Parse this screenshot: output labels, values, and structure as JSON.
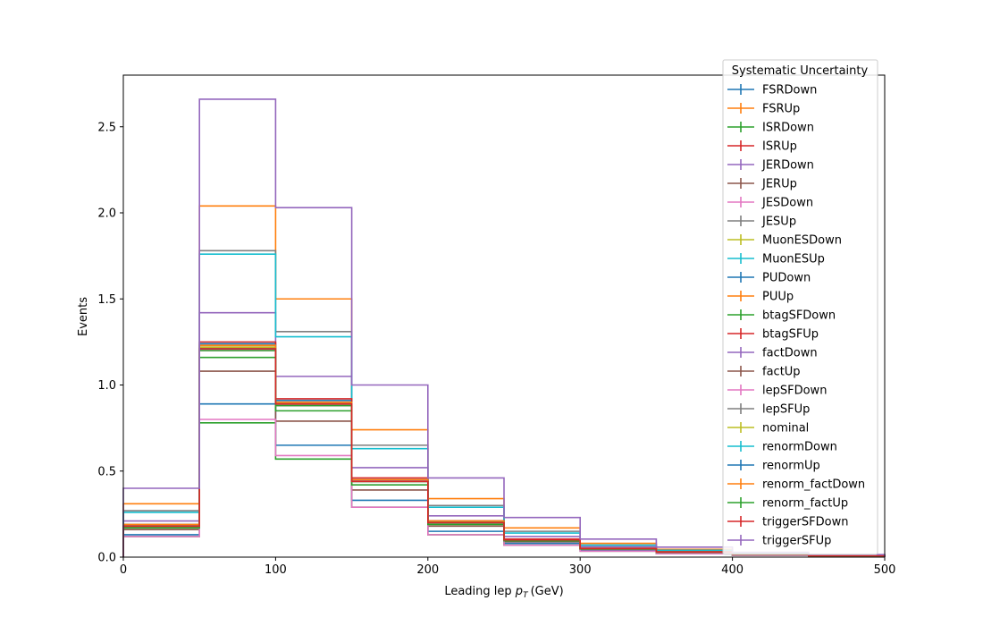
{
  "chart_data": {
    "type": "step",
    "xlabel": "Leading lep",
    "xlabel_sym": "p",
    "xlabel_sub": "T",
    "xlabel_unit": "(GeV)",
    "ylabel": "Events",
    "xlim": [
      0,
      500
    ],
    "ylim": [
      0,
      2.8
    ],
    "xticks": [
      0,
      100,
      200,
      300,
      400,
      500
    ],
    "yticks": [
      0.0,
      0.5,
      1.0,
      1.5,
      2.0,
      2.5
    ],
    "xtick_labels": [
      "0",
      "100",
      "200",
      "300",
      "400",
      "500"
    ],
    "ytick_labels": [
      "0.0",
      "0.5",
      "1.0",
      "1.5",
      "2.0",
      "2.5"
    ],
    "bin_edges": [
      0,
      50,
      100,
      150,
      200,
      250,
      300,
      350,
      400,
      450,
      500
    ],
    "legend_title": "Systematic Uncertainty",
    "legend_position": "upper-right",
    "series": [
      {
        "name": "FSRDown",
        "color": "#1f77b4",
        "values": [
          0.13,
          0.89,
          0.65,
          0.33,
          0.15,
          0.08,
          0.04,
          0.025,
          0.012,
          0.007
        ]
      },
      {
        "name": "FSRUp",
        "color": "#ff7f0e",
        "values": [
          0.31,
          2.04,
          1.5,
          0.74,
          0.34,
          0.17,
          0.08,
          0.045,
          0.022,
          0.012
        ]
      },
      {
        "name": "ISRDown",
        "color": "#2ca02c",
        "values": [
          0.12,
          0.78,
          0.57,
          0.29,
          0.13,
          0.07,
          0.035,
          0.02,
          0.01,
          0.005
        ]
      },
      {
        "name": "ISRUp",
        "color": "#d62728",
        "values": [
          0.18,
          1.22,
          0.89,
          0.45,
          0.2,
          0.1,
          0.05,
          0.03,
          0.015,
          0.008
        ]
      },
      {
        "name": "JERDown",
        "color": "#9467bd",
        "values": [
          0.21,
          1.42,
          1.05,
          0.52,
          0.24,
          0.12,
          0.06,
          0.035,
          0.017,
          0.009
        ]
      },
      {
        "name": "JERUp",
        "color": "#8c564b",
        "values": [
          0.16,
          1.08,
          0.79,
          0.39,
          0.18,
          0.09,
          0.045,
          0.027,
          0.013,
          0.007
        ]
      },
      {
        "name": "JESDown",
        "color": "#e377c2",
        "values": [
          0.12,
          0.8,
          0.59,
          0.29,
          0.13,
          0.07,
          0.035,
          0.02,
          0.01,
          0.005
        ]
      },
      {
        "name": "JESUp",
        "color": "#7f7f7f",
        "values": [
          0.27,
          1.78,
          1.31,
          0.65,
          0.3,
          0.15,
          0.07,
          0.04,
          0.02,
          0.01
        ]
      },
      {
        "name": "MuonESDown",
        "color": "#bcbd22",
        "values": [
          0.18,
          1.21,
          0.89,
          0.44,
          0.2,
          0.1,
          0.05,
          0.03,
          0.015,
          0.008
        ]
      },
      {
        "name": "MuonESUp",
        "color": "#17becf",
        "values": [
          0.26,
          1.76,
          1.28,
          0.63,
          0.29,
          0.14,
          0.07,
          0.04,
          0.02,
          0.01
        ]
      },
      {
        "name": "PUDown",
        "color": "#1f77b4",
        "values": [
          0.19,
          1.24,
          0.91,
          0.45,
          0.21,
          0.1,
          0.05,
          0.03,
          0.015,
          0.008
        ]
      },
      {
        "name": "PUUp",
        "color": "#ff7f0e",
        "values": [
          0.18,
          1.21,
          0.89,
          0.44,
          0.2,
          0.1,
          0.05,
          0.03,
          0.015,
          0.008
        ]
      },
      {
        "name": "btagSFDown",
        "color": "#2ca02c",
        "values": [
          0.17,
          1.16,
          0.85,
          0.42,
          0.19,
          0.095,
          0.047,
          0.028,
          0.014,
          0.007
        ]
      },
      {
        "name": "btagSFUp",
        "color": "#d62728",
        "values": [
          0.19,
          1.25,
          0.92,
          0.46,
          0.21,
          0.105,
          0.052,
          0.031,
          0.015,
          0.008
        ]
      },
      {
        "name": "factDown",
        "color": "#9467bd",
        "values": [
          0.19,
          1.23,
          0.9,
          0.45,
          0.2,
          0.1,
          0.05,
          0.03,
          0.015,
          0.008
        ]
      },
      {
        "name": "factUp",
        "color": "#8c564b",
        "values": [
          0.18,
          1.21,
          0.88,
          0.44,
          0.2,
          0.1,
          0.05,
          0.03,
          0.015,
          0.008
        ]
      },
      {
        "name": "lepSFDown",
        "color": "#e377c2",
        "values": [
          0.18,
          1.2,
          0.88,
          0.44,
          0.2,
          0.1,
          0.05,
          0.03,
          0.015,
          0.008
        ]
      },
      {
        "name": "lepSFUp",
        "color": "#7f7f7f",
        "values": [
          0.19,
          1.23,
          0.9,
          0.45,
          0.21,
          0.1,
          0.05,
          0.03,
          0.015,
          0.008
        ]
      },
      {
        "name": "nominal",
        "color": "#bcbd22",
        "values": [
          0.18,
          1.22,
          0.89,
          0.44,
          0.2,
          0.1,
          0.05,
          0.03,
          0.015,
          0.008
        ]
      },
      {
        "name": "renormDown",
        "color": "#17becf",
        "values": [
          0.19,
          1.23,
          0.9,
          0.45,
          0.2,
          0.1,
          0.05,
          0.03,
          0.015,
          0.008
        ]
      },
      {
        "name": "renormUp",
        "color": "#1f77b4",
        "values": [
          0.18,
          1.21,
          0.89,
          0.44,
          0.2,
          0.1,
          0.05,
          0.03,
          0.015,
          0.008
        ]
      },
      {
        "name": "renorm_factDown",
        "color": "#ff7f0e",
        "values": [
          0.19,
          1.23,
          0.9,
          0.45,
          0.21,
          0.1,
          0.05,
          0.03,
          0.015,
          0.008
        ]
      },
      {
        "name": "renorm_factUp",
        "color": "#2ca02c",
        "values": [
          0.18,
          1.2,
          0.88,
          0.44,
          0.2,
          0.1,
          0.05,
          0.03,
          0.015,
          0.008
        ]
      },
      {
        "name": "triggerSFDown",
        "color": "#d62728",
        "values": [
          0.18,
          1.21,
          0.89,
          0.44,
          0.2,
          0.1,
          0.05,
          0.03,
          0.015,
          0.008
        ]
      },
      {
        "name": "triggerSFUp",
        "color": "#9467bd",
        "values": [
          0.4,
          2.66,
          2.03,
          1.0,
          0.46,
          0.23,
          0.105,
          0.058,
          0.028,
          0.015
        ]
      }
    ]
  }
}
